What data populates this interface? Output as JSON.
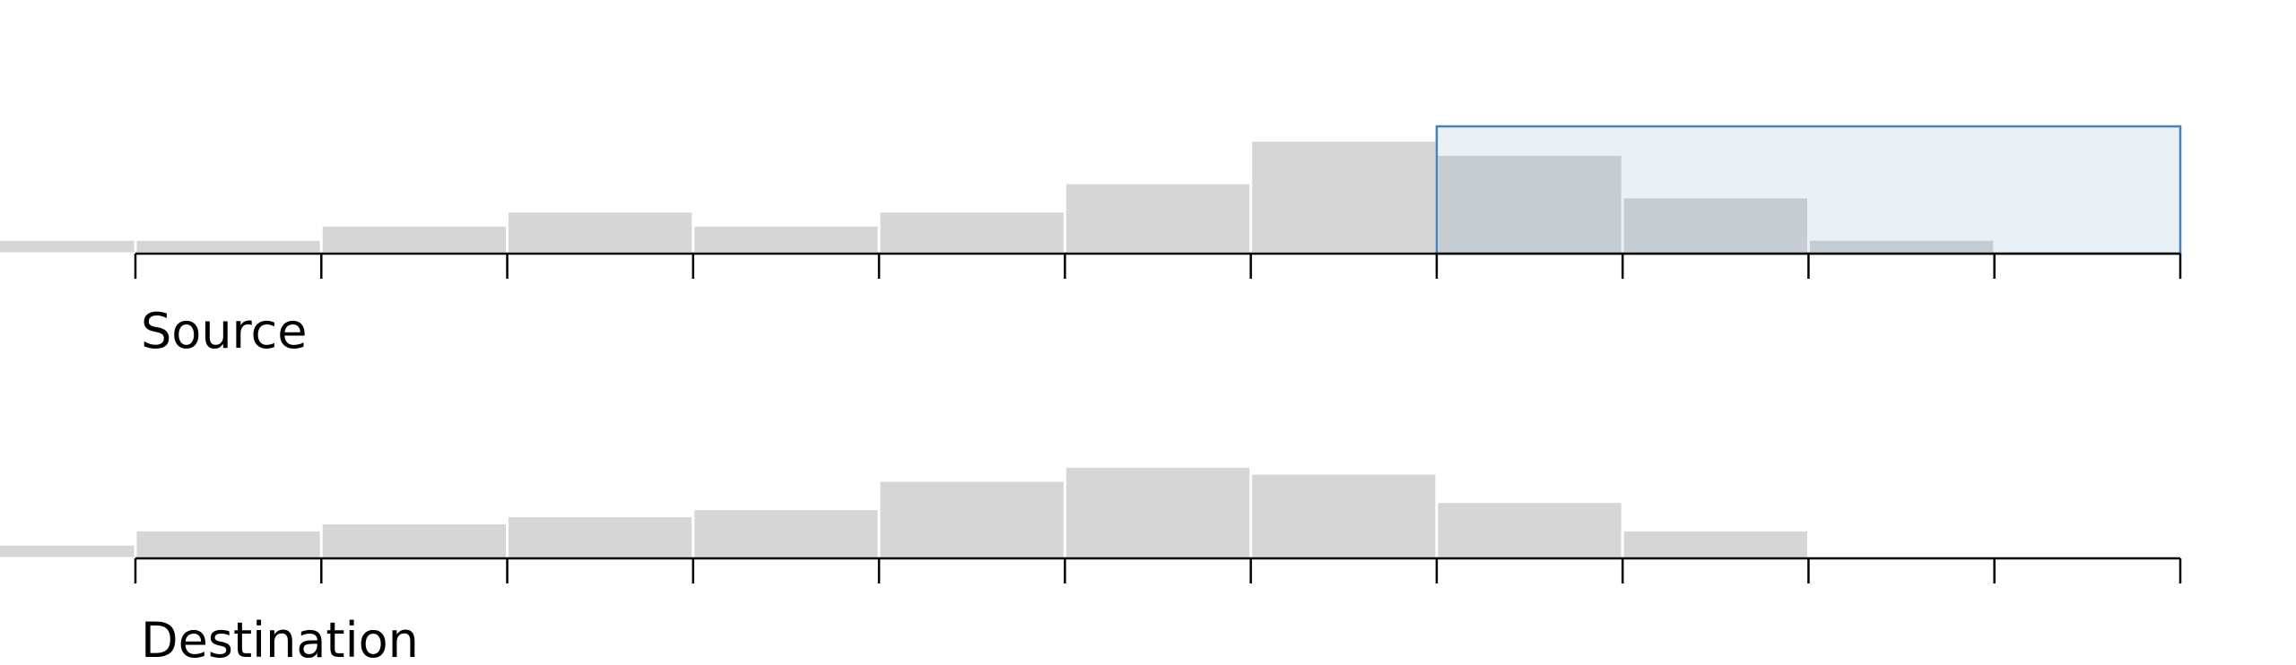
{
  "chart_data": [
    {
      "type": "bar",
      "title": "Source",
      "bins": 11,
      "values": [
        2,
        4,
        6,
        4,
        6,
        10,
        16,
        14,
        8,
        2,
        0
      ],
      "leading_overflow": 2,
      "ylim": [
        0,
        20
      ],
      "brush": {
        "start_bin": 7,
        "end_bin": 11
      },
      "colors": {
        "bar": "#d6d6d6",
        "axis": "#000000",
        "brush_fill": "rgba(70,130,180,0.12)",
        "brush_stroke": "#4682b4"
      }
    },
    {
      "type": "bar",
      "title": "Destination",
      "bins": 11,
      "values": [
        4,
        5,
        6,
        7,
        11,
        13,
        12,
        8,
        4,
        0,
        0
      ],
      "leading_overflow": 2,
      "ylim": [
        0,
        20
      ],
      "colors": {
        "bar": "#d6d6d6",
        "axis": "#000000"
      }
    }
  ]
}
